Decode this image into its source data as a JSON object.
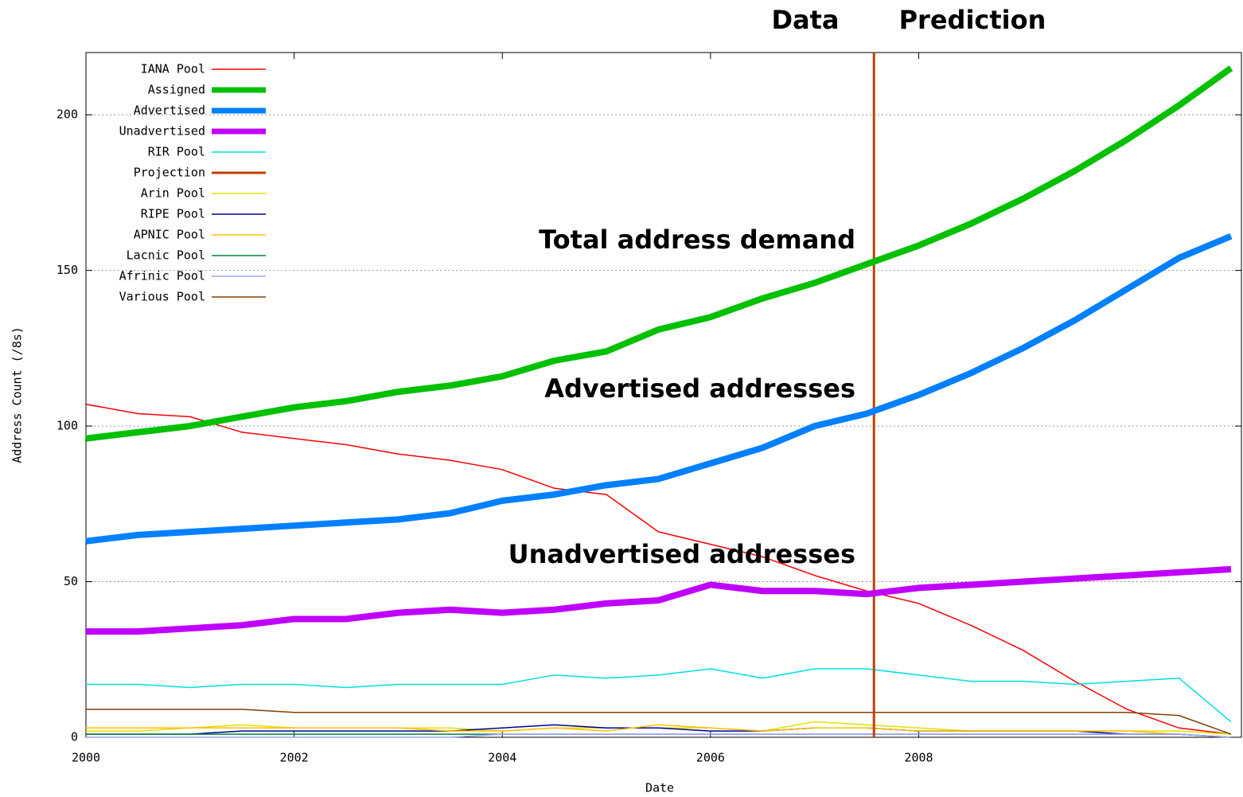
{
  "chart_data": {
    "type": "line",
    "xlabel": "Date",
    "ylabel": "Address Count (/8s)",
    "annotations": [
      "Data",
      "Prediction",
      "Total address demand",
      "Advertised addresses",
      "Unadvertised addresses"
    ],
    "x": [
      2000,
      2000.5,
      2001,
      2001.5,
      2002,
      2002.5,
      2003,
      2003.5,
      2004,
      2004.5,
      2005,
      2005.5,
      2006,
      2006.5,
      2007,
      2007.5,
      2008,
      2008.5,
      2009,
      2009.5,
      2010,
      2010.5,
      2011
    ],
    "xlim": [
      2000,
      2011.1
    ],
    "xticks": [
      2000,
      2002,
      2004,
      2006,
      2008
    ],
    "ylim": [
      0,
      220
    ],
    "yticks": [
      0,
      50,
      100,
      150,
      200
    ],
    "grid": true,
    "legend": "upper left",
    "series": [
      {
        "name": "IANA Pool",
        "color": "#ff0000",
        "width": 1.5,
        "values": [
          107,
          104,
          103,
          98,
          96,
          94,
          91,
          89,
          86,
          80,
          78,
          66,
          62,
          58,
          52,
          47,
          43,
          36,
          28,
          18,
          9,
          3,
          1
        ]
      },
      {
        "name": "Assigned",
        "color": "#00c000",
        "width": 8,
        "values": [
          96,
          98,
          100,
          103,
          106,
          108,
          111,
          113,
          116,
          121,
          124,
          131,
          135,
          141,
          146,
          152,
          158,
          165,
          173,
          182,
          192,
          203,
          215
        ]
      },
      {
        "name": "Advertised",
        "color": "#0080ff",
        "width": 8,
        "values": [
          63,
          65,
          66,
          67,
          68,
          69,
          70,
          72,
          76,
          78,
          81,
          83,
          88,
          93,
          100,
          104,
          110,
          117,
          125,
          134,
          144,
          154,
          161
        ]
      },
      {
        "name": "Unadvertised",
        "color": "#c000ff",
        "width": 8,
        "values": [
          34,
          34,
          35,
          36,
          38,
          38,
          40,
          41,
          40,
          41,
          43,
          44,
          49,
          47,
          47,
          46,
          48,
          49,
          50,
          51,
          52,
          53,
          54
        ]
      },
      {
        "name": "RIR Pool",
        "color": "#00e0e0",
        "width": 1.5,
        "values": [
          17,
          17,
          16,
          17,
          17,
          16,
          17,
          17,
          17,
          20,
          19,
          20,
          22,
          19,
          22,
          22,
          20,
          18,
          18,
          17,
          18,
          19,
          5
        ]
      },
      {
        "name": "Projection",
        "color": "#c04000",
        "width": 3,
        "x": [
          2007.57,
          2007.57
        ],
        "values": [
          0,
          220
        ]
      },
      {
        "name": "Arin Pool",
        "color": "#e0e000",
        "width": 1.5,
        "values": [
          2,
          2,
          3,
          4,
          3,
          3,
          3,
          3,
          2,
          3,
          3,
          3,
          3,
          2,
          5,
          4,
          3,
          2,
          2,
          2,
          2,
          2,
          1
        ]
      },
      {
        "name": "RIPE Pool",
        "color": "#0000a0",
        "width": 1.5,
        "values": [
          1,
          1,
          1,
          2,
          2,
          2,
          2,
          2,
          3,
          4,
          3,
          3,
          2,
          2,
          3,
          3,
          2,
          2,
          2,
          2,
          1,
          1,
          0
        ]
      },
      {
        "name": "APNIC Pool",
        "color": "#ffc000",
        "width": 1.5,
        "values": [
          3,
          3,
          3,
          3,
          3,
          3,
          3,
          2,
          2,
          3,
          2,
          4,
          3,
          2,
          3,
          3,
          2,
          2,
          2,
          2,
          2,
          1,
          0
        ]
      },
      {
        "name": "Lacnic Pool",
        "color": "#008040",
        "width": 1.5,
        "values": [
          1,
          1,
          1,
          1,
          1,
          1,
          1,
          1,
          1,
          1,
          1,
          1,
          1,
          1,
          1,
          1,
          1,
          1,
          1,
          1,
          1,
          1,
          0
        ]
      },
      {
        "name": "Afrinic Pool",
        "color": "#a0a0ff",
        "width": 1.5,
        "values": [
          0,
          0,
          0,
          0,
          0,
          0,
          0,
          0,
          1,
          1,
          1,
          1,
          1,
          1,
          1,
          1,
          1,
          1,
          1,
          1,
          1,
          1,
          0
        ]
      },
      {
        "name": "Various Pool",
        "color": "#804000",
        "width": 1.5,
        "values": [
          9,
          9,
          9,
          9,
          8,
          8,
          8,
          8,
          8,
          8,
          8,
          8,
          8,
          8,
          8,
          8,
          8,
          8,
          8,
          8,
          8,
          7,
          1
        ]
      }
    ]
  }
}
